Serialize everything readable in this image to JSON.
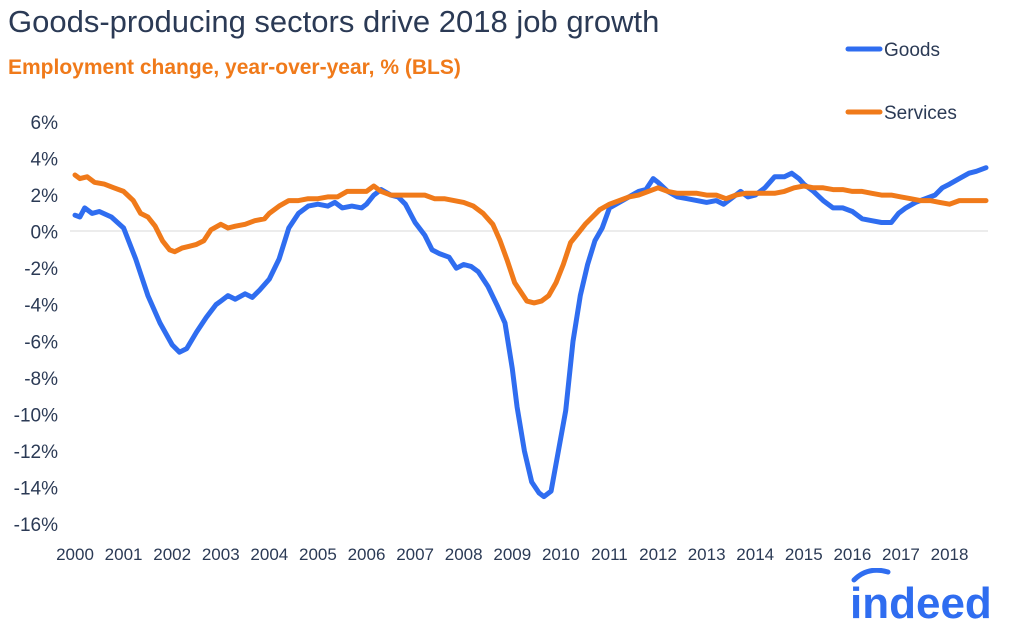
{
  "title": "Goods-producing sectors drive 2018 job growth",
  "subtitle": "Employment change, year-over-year, % (BLS)",
  "logo": "indeed",
  "colors": {
    "goods": "#2f6df0",
    "services": "#f07a1a",
    "title": "#2b3a55",
    "subtitle": "#f07a1a",
    "logo": "#2f6df0"
  },
  "chart_data": {
    "type": "line",
    "title": "Goods-producing sectors drive 2018 job growth",
    "subtitle": "Employment change, year-over-year, % (BLS)",
    "xlabel": "",
    "ylabel": "",
    "xlim": [
      2000.0,
      2018.75
    ],
    "ylim": [
      -16,
      6
    ],
    "x_ticks": [
      "2000",
      "2001",
      "2002",
      "2003",
      "2004",
      "2005",
      "2006",
      "2007",
      "2008",
      "2009",
      "2010",
      "2011",
      "2012",
      "2013",
      "2014",
      "2015",
      "2016",
      "2017",
      "2018"
    ],
    "y_ticks": [
      "6%",
      "4%",
      "2%",
      "0%",
      "-2%",
      "-4%",
      "-6%",
      "-8%",
      "-10%",
      "-12%",
      "-14%",
      "-16%"
    ],
    "grid": false,
    "legend_position": "top-right",
    "series": [
      {
        "name": "Goods",
        "color": "#2f6df0",
        "points": [
          [
            2000.0,
            0.9
          ],
          [
            2000.1,
            0.8
          ],
          [
            2000.2,
            1.3
          ],
          [
            2000.35,
            1.0
          ],
          [
            2000.5,
            1.1
          ],
          [
            2000.75,
            0.8
          ],
          [
            2001.0,
            0.2
          ],
          [
            2001.25,
            -1.5
          ],
          [
            2001.5,
            -3.5
          ],
          [
            2001.75,
            -5.0
          ],
          [
            2002.0,
            -6.2
          ],
          [
            2002.15,
            -6.6
          ],
          [
            2002.3,
            -6.4
          ],
          [
            2002.5,
            -5.5
          ],
          [
            2002.7,
            -4.7
          ],
          [
            2002.9,
            -4.0
          ],
          [
            2003.0,
            -3.8
          ],
          [
            2003.15,
            -3.5
          ],
          [
            2003.3,
            -3.7
          ],
          [
            2003.5,
            -3.4
          ],
          [
            2003.65,
            -3.6
          ],
          [
            2003.8,
            -3.2
          ],
          [
            2004.0,
            -2.6
          ],
          [
            2004.2,
            -1.5
          ],
          [
            2004.4,
            0.2
          ],
          [
            2004.6,
            1.0
          ],
          [
            2004.8,
            1.4
          ],
          [
            2005.0,
            1.5
          ],
          [
            2005.2,
            1.4
          ],
          [
            2005.35,
            1.6
          ],
          [
            2005.5,
            1.3
          ],
          [
            2005.7,
            1.4
          ],
          [
            2005.9,
            1.3
          ],
          [
            2006.0,
            1.5
          ],
          [
            2006.15,
            2.0
          ],
          [
            2006.3,
            2.3
          ],
          [
            2006.5,
            2.0
          ],
          [
            2006.65,
            1.9
          ],
          [
            2006.8,
            1.5
          ],
          [
            2007.0,
            0.5
          ],
          [
            2007.2,
            -0.2
          ],
          [
            2007.35,
            -1.0
          ],
          [
            2007.5,
            -1.2
          ],
          [
            2007.7,
            -1.4
          ],
          [
            2007.85,
            -2.0
          ],
          [
            2008.0,
            -1.8
          ],
          [
            2008.15,
            -1.9
          ],
          [
            2008.3,
            -2.2
          ],
          [
            2008.5,
            -3.0
          ],
          [
            2008.7,
            -4.1
          ],
          [
            2008.85,
            -5.0
          ],
          [
            2009.0,
            -7.5
          ],
          [
            2009.1,
            -9.6
          ],
          [
            2009.25,
            -12.0
          ],
          [
            2009.4,
            -13.7
          ],
          [
            2009.55,
            -14.3
          ],
          [
            2009.65,
            -14.5
          ],
          [
            2009.8,
            -14.2
          ],
          [
            2009.95,
            -12.0
          ],
          [
            2010.1,
            -9.8
          ],
          [
            2010.25,
            -6.0
          ],
          [
            2010.4,
            -3.5
          ],
          [
            2010.55,
            -1.8
          ],
          [
            2010.7,
            -0.5
          ],
          [
            2010.85,
            0.2
          ],
          [
            2011.0,
            1.3
          ],
          [
            2011.2,
            1.6
          ],
          [
            2011.4,
            1.9
          ],
          [
            2011.6,
            2.2
          ],
          [
            2011.75,
            2.3
          ],
          [
            2011.9,
            2.9
          ],
          [
            2012.0,
            2.7
          ],
          [
            2012.2,
            2.2
          ],
          [
            2012.4,
            1.9
          ],
          [
            2012.6,
            1.8
          ],
          [
            2012.8,
            1.7
          ],
          [
            2013.0,
            1.6
          ],
          [
            2013.2,
            1.7
          ],
          [
            2013.35,
            1.5
          ],
          [
            2013.5,
            1.8
          ],
          [
            2013.7,
            2.2
          ],
          [
            2013.85,
            1.9
          ],
          [
            2014.0,
            2.0
          ],
          [
            2014.2,
            2.4
          ],
          [
            2014.4,
            3.0
          ],
          [
            2014.6,
            3.0
          ],
          [
            2014.75,
            3.2
          ],
          [
            2014.9,
            2.9
          ],
          [
            2015.0,
            2.6
          ],
          [
            2015.2,
            2.2
          ],
          [
            2015.4,
            1.7
          ],
          [
            2015.6,
            1.3
          ],
          [
            2015.8,
            1.3
          ],
          [
            2016.0,
            1.1
          ],
          [
            2016.2,
            0.7
          ],
          [
            2016.4,
            0.6
          ],
          [
            2016.6,
            0.5
          ],
          [
            2016.8,
            0.5
          ],
          [
            2016.95,
            1.0
          ],
          [
            2017.1,
            1.3
          ],
          [
            2017.3,
            1.6
          ],
          [
            2017.5,
            1.8
          ],
          [
            2017.7,
            2.0
          ],
          [
            2017.85,
            2.4
          ],
          [
            2018.0,
            2.6
          ],
          [
            2018.2,
            2.9
          ],
          [
            2018.4,
            3.2
          ],
          [
            2018.55,
            3.3
          ],
          [
            2018.75,
            3.5
          ]
        ]
      },
      {
        "name": "Services",
        "color": "#f07a1a",
        "points": [
          [
            2000.0,
            3.1
          ],
          [
            2000.1,
            2.9
          ],
          [
            2000.25,
            3.0
          ],
          [
            2000.4,
            2.7
          ],
          [
            2000.6,
            2.6
          ],
          [
            2000.8,
            2.4
          ],
          [
            2001.0,
            2.2
          ],
          [
            2001.2,
            1.7
          ],
          [
            2001.35,
            1.0
          ],
          [
            2001.5,
            0.8
          ],
          [
            2001.65,
            0.3
          ],
          [
            2001.8,
            -0.5
          ],
          [
            2001.95,
            -1.0
          ],
          [
            2002.05,
            -1.1
          ],
          [
            2002.2,
            -0.9
          ],
          [
            2002.35,
            -0.8
          ],
          [
            2002.5,
            -0.7
          ],
          [
            2002.65,
            -0.5
          ],
          [
            2002.8,
            0.1
          ],
          [
            2003.0,
            0.4
          ],
          [
            2003.15,
            0.2
          ],
          [
            2003.3,
            0.3
          ],
          [
            2003.5,
            0.4
          ],
          [
            2003.7,
            0.6
          ],
          [
            2003.9,
            0.7
          ],
          [
            2004.0,
            1.0
          ],
          [
            2004.2,
            1.4
          ],
          [
            2004.4,
            1.7
          ],
          [
            2004.6,
            1.7
          ],
          [
            2004.8,
            1.8
          ],
          [
            2005.0,
            1.8
          ],
          [
            2005.2,
            1.9
          ],
          [
            2005.4,
            1.9
          ],
          [
            2005.6,
            2.2
          ],
          [
            2005.8,
            2.2
          ],
          [
            2006.0,
            2.2
          ],
          [
            2006.15,
            2.5
          ],
          [
            2006.3,
            2.2
          ],
          [
            2006.5,
            2.0
          ],
          [
            2006.7,
            2.0
          ],
          [
            2006.9,
            2.0
          ],
          [
            2007.0,
            2.0
          ],
          [
            2007.2,
            2.0
          ],
          [
            2007.4,
            1.8
          ],
          [
            2007.6,
            1.8
          ],
          [
            2007.8,
            1.7
          ],
          [
            2008.0,
            1.6
          ],
          [
            2008.2,
            1.4
          ],
          [
            2008.4,
            1.0
          ],
          [
            2008.6,
            0.4
          ],
          [
            2008.75,
            -0.5
          ],
          [
            2008.9,
            -1.6
          ],
          [
            2009.05,
            -2.8
          ],
          [
            2009.2,
            -3.4
          ],
          [
            2009.3,
            -3.8
          ],
          [
            2009.45,
            -3.9
          ],
          [
            2009.6,
            -3.8
          ],
          [
            2009.75,
            -3.5
          ],
          [
            2009.9,
            -2.8
          ],
          [
            2010.05,
            -1.8
          ],
          [
            2010.2,
            -0.6
          ],
          [
            2010.35,
            -0.1
          ],
          [
            2010.5,
            0.4
          ],
          [
            2010.65,
            0.8
          ],
          [
            2010.8,
            1.2
          ],
          [
            2011.0,
            1.5
          ],
          [
            2011.2,
            1.7
          ],
          [
            2011.4,
            1.9
          ],
          [
            2011.6,
            2.0
          ],
          [
            2011.8,
            2.2
          ],
          [
            2012.0,
            2.4
          ],
          [
            2012.2,
            2.2
          ],
          [
            2012.4,
            2.1
          ],
          [
            2012.6,
            2.1
          ],
          [
            2012.8,
            2.1
          ],
          [
            2013.0,
            2.0
          ],
          [
            2013.2,
            2.0
          ],
          [
            2013.4,
            1.8
          ],
          [
            2013.6,
            2.0
          ],
          [
            2013.8,
            2.1
          ],
          [
            2014.0,
            2.1
          ],
          [
            2014.2,
            2.1
          ],
          [
            2014.4,
            2.1
          ],
          [
            2014.6,
            2.2
          ],
          [
            2014.8,
            2.4
          ],
          [
            2015.0,
            2.5
          ],
          [
            2015.2,
            2.4
          ],
          [
            2015.4,
            2.4
          ],
          [
            2015.6,
            2.3
          ],
          [
            2015.8,
            2.3
          ],
          [
            2016.0,
            2.2
          ],
          [
            2016.2,
            2.2
          ],
          [
            2016.4,
            2.1
          ],
          [
            2016.6,
            2.0
          ],
          [
            2016.8,
            2.0
          ],
          [
            2017.0,
            1.9
          ],
          [
            2017.2,
            1.8
          ],
          [
            2017.4,
            1.7
          ],
          [
            2017.6,
            1.7
          ],
          [
            2017.8,
            1.6
          ],
          [
            2018.0,
            1.5
          ],
          [
            2018.2,
            1.7
          ],
          [
            2018.4,
            1.7
          ],
          [
            2018.6,
            1.7
          ],
          [
            2018.75,
            1.7
          ]
        ]
      }
    ]
  }
}
